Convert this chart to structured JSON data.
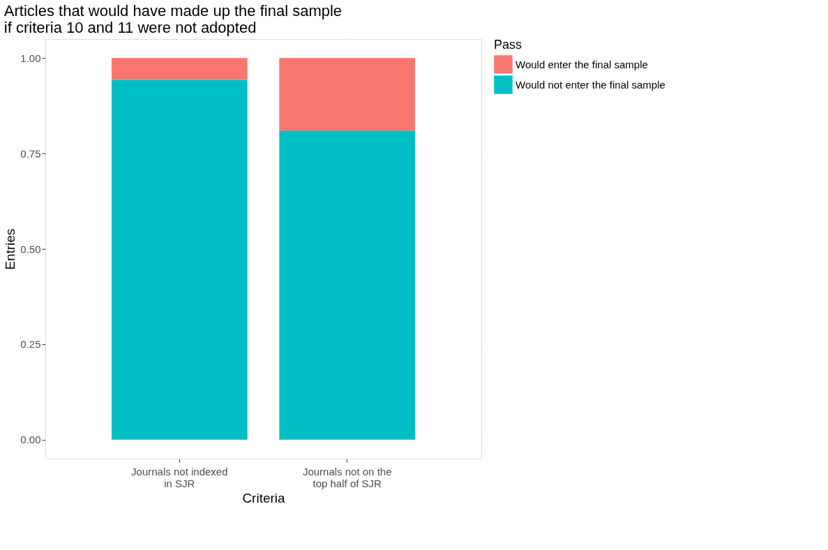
{
  "chart_data": {
    "type": "bar",
    "title": "Articles that would have made up the final sample\nif criteria 10 and 11 were not adopted",
    "xlabel": "Criteria",
    "ylabel": "Entries",
    "legend_title": "Pass",
    "categories": [
      "Journals not indexed\nin SJR",
      "Journals not on the\ntop half of SJR"
    ],
    "series": [
      {
        "name": "Would not enter the final sample",
        "color": "#00bfc4",
        "values": [
          0.943,
          0.809
        ]
      },
      {
        "name": "Would enter the final sample",
        "color": "#f8766d",
        "values": [
          0.057,
          0.191
        ]
      }
    ],
    "stacked": true,
    "ylim": [
      -0.05,
      1.05
    ],
    "yticks": [
      {
        "value": 0,
        "label": "0.00"
      },
      {
        "value": 0.25,
        "label": "0.25"
      },
      {
        "value": 0.5,
        "label": "0.50"
      },
      {
        "value": 0.75,
        "label": "0.75"
      },
      {
        "value": 1,
        "label": "1.00"
      }
    ],
    "grid": true,
    "legend": "right"
  }
}
